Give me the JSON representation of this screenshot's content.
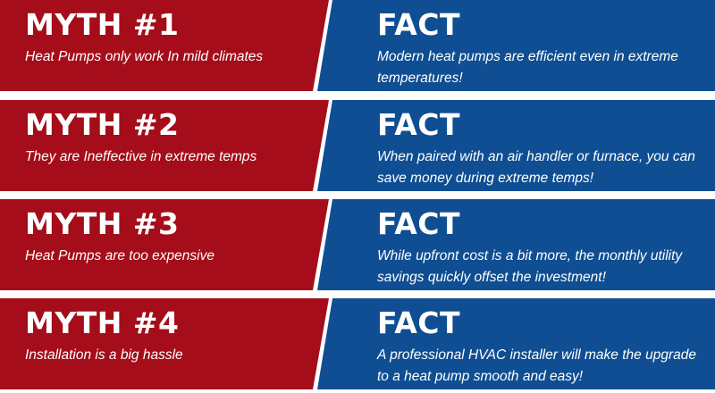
{
  "rows": [
    {
      "myth_title": "MYTH #1",
      "myth_text": "Heat Pumps only work In mild climates",
      "fact_title": "FACT",
      "fact_text": "Modern heat pumps are efficient even in extreme temperatures!"
    },
    {
      "myth_title": "MYTH #2",
      "myth_text": "They are Ineffective in extreme temps",
      "fact_title": "FACT",
      "fact_text": "When paired with an air handler or furnace, you can save money during extreme temps!"
    },
    {
      "myth_title": "MYTH #3",
      "myth_text": "Heat Pumps are too expensive",
      "fact_title": "FACT",
      "fact_text": "While upfront cost is a bit more, the monthly utility savings quickly offset the investment!"
    },
    {
      "myth_title": "MYTH #4",
      "myth_text": "Installation is a big hassle",
      "fact_title": "FACT",
      "fact_text": "A professional HVAC installer will make the upgrade to a heat pump smooth and easy!"
    }
  ],
  "colors": {
    "myth_red": "#a40d19",
    "fact_blue": "#0f4e92",
    "text": "#ffffff",
    "divider": "#ffffff"
  }
}
